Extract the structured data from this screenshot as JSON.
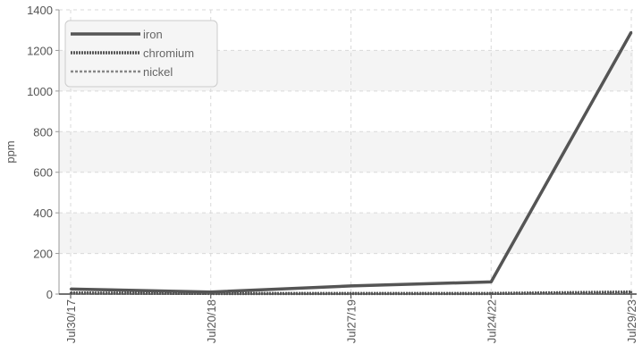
{
  "chart_data": {
    "type": "line",
    "title": "",
    "xlabel": "",
    "ylabel": "ppm",
    "ylim": [
      0,
      1400
    ],
    "yticks": [
      0,
      200,
      400,
      600,
      800,
      1000,
      1200,
      1400
    ],
    "categories": [
      "Jul30/17",
      "Jul20/18",
      "Jul27/19",
      "Jul24/22",
      "Jul29/23"
    ],
    "grid": true,
    "legend_position": "top-left",
    "series": [
      {
        "name": "iron",
        "values": [
          25,
          10,
          40,
          60,
          1290
        ],
        "color": "#555555",
        "style": "solid"
      },
      {
        "name": "chromium",
        "values": [
          5,
          3,
          3,
          3,
          10
        ],
        "color": "#555555",
        "style": "dense-dashed"
      },
      {
        "name": "nickel",
        "values": [
          3,
          2,
          2,
          2,
          6
        ],
        "color": "#888888",
        "style": "dashed"
      }
    ]
  }
}
